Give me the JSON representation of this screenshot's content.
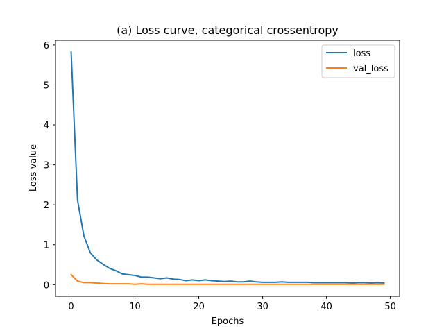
{
  "chart_data": {
    "type": "line",
    "title": "(a) Loss curve, categorical crossentropy",
    "xlabel": "Epochs",
    "ylabel": "Loss value",
    "xlim": [
      -2.45,
      51.45
    ],
    "ylim": [
      -0.29,
      6.12
    ],
    "xticks": [
      0,
      10,
      20,
      30,
      40,
      50
    ],
    "yticks": [
      0,
      1,
      2,
      3,
      4,
      5,
      6
    ],
    "grid": false,
    "legend_position": "top-right",
    "x": [
      0,
      1,
      2,
      3,
      4,
      5,
      6,
      7,
      8,
      9,
      10,
      11,
      12,
      13,
      14,
      15,
      16,
      17,
      18,
      19,
      20,
      21,
      22,
      23,
      24,
      25,
      26,
      27,
      28,
      29,
      30,
      31,
      32,
      33,
      34,
      35,
      36,
      37,
      38,
      39,
      40,
      41,
      42,
      43,
      44,
      45,
      46,
      47,
      48,
      49
    ],
    "series": [
      {
        "name": "loss",
        "color": "#1f77b4",
        "values": [
          5.82,
          2.12,
          1.22,
          0.8,
          0.62,
          0.51,
          0.41,
          0.35,
          0.27,
          0.25,
          0.23,
          0.19,
          0.19,
          0.17,
          0.15,
          0.17,
          0.14,
          0.13,
          0.1,
          0.12,
          0.1,
          0.12,
          0.1,
          0.09,
          0.08,
          0.09,
          0.07,
          0.07,
          0.09,
          0.07,
          0.06,
          0.06,
          0.06,
          0.07,
          0.06,
          0.06,
          0.06,
          0.06,
          0.05,
          0.05,
          0.05,
          0.05,
          0.05,
          0.05,
          0.04,
          0.05,
          0.05,
          0.04,
          0.05,
          0.04
        ]
      },
      {
        "name": "val_loss",
        "color": "#ff7f0e",
        "values": [
          0.25,
          0.09,
          0.05,
          0.05,
          0.04,
          0.03,
          0.02,
          0.02,
          0.02,
          0.02,
          0.01,
          0.02,
          0.01,
          0.01,
          0.01,
          0.01,
          0.01,
          0.01,
          0.01,
          0.01,
          0.01,
          0.01,
          0.01,
          0.01,
          0.01,
          0.01,
          0.01,
          0.01,
          0.01,
          0.01,
          0.01,
          0.01,
          0.01,
          0.01,
          0.01,
          0.01,
          0.01,
          0.01,
          0.01,
          0.01,
          0.01,
          0.01,
          0.01,
          0.01,
          0.01,
          0.01,
          0.01,
          0.01,
          0.01,
          0.01
        ]
      }
    ]
  }
}
